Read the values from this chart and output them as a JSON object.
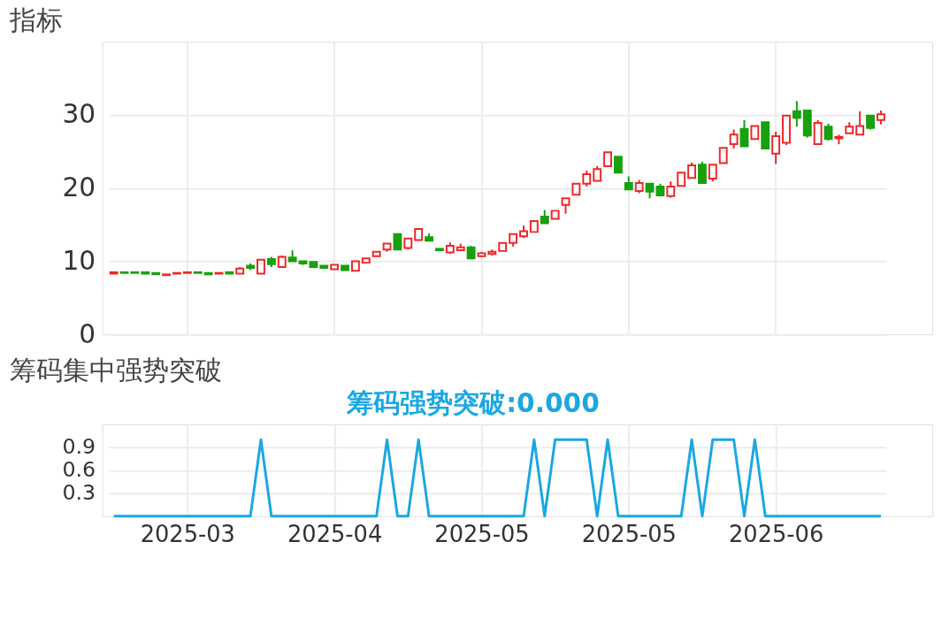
{
  "chart_data": [
    {
      "type": "candlestick",
      "title": "指标",
      "categories": [
        null,
        null,
        null,
        null,
        null,
        null,
        null,
        "2025-03",
        null,
        null,
        null,
        null,
        null,
        null,
        null,
        null,
        null,
        null,
        null,
        null,
        null,
        "2025-04",
        null,
        null,
        null,
        null,
        null,
        null,
        null,
        null,
        null,
        null,
        null,
        null,
        null,
        "2025-05",
        null,
        null,
        null,
        null,
        null,
        null,
        null,
        null,
        null,
        null,
        null,
        null,
        null,
        "2025-05",
        null,
        null,
        null,
        null,
        null,
        null,
        null,
        null,
        null,
        null,
        null,
        null,
        null,
        "2025-06",
        null,
        null,
        null,
        null,
        null,
        null,
        null,
        null,
        null,
        null
      ],
      "ohlc": [
        [
          8.3,
          8.5,
          8.3,
          8.5
        ],
        [
          8.5,
          8.5,
          8.4,
          8.4
        ],
        [
          8.5,
          8.5,
          8.4,
          8.4
        ],
        [
          8.5,
          8.5,
          8.3,
          8.3
        ],
        [
          8.4,
          8.4,
          8.2,
          8.2
        ],
        [
          8.1,
          8.2,
          8.1,
          8.2
        ],
        [
          8.3,
          8.4,
          8.3,
          8.4
        ],
        [
          8.4,
          8.5,
          8.4,
          8.5
        ],
        [
          8.5,
          8.5,
          8.4,
          8.4
        ],
        [
          8.4,
          8.4,
          8.2,
          8.2
        ],
        [
          8.3,
          8.4,
          8.3,
          8.4
        ],
        [
          8.5,
          8.5,
          8.3,
          8.3
        ],
        [
          8.3,
          9.2,
          8.3,
          9.0
        ],
        [
          9.4,
          9.7,
          8.8,
          9.1
        ],
        [
          8.3,
          10.2,
          8.3,
          10.2
        ],
        [
          10.3,
          10.6,
          9.2,
          9.6
        ],
        [
          9.2,
          10.8,
          9.2,
          10.6
        ],
        [
          10.5,
          11.5,
          10.0,
          10.0
        ],
        [
          10.0,
          10.0,
          9.5,
          9.7
        ],
        [
          9.9,
          9.9,
          9.2,
          9.2
        ],
        [
          9.4,
          9.4,
          9.1,
          9.1
        ],
        [
          8.9,
          9.5,
          8.9,
          9.5
        ],
        [
          9.4,
          9.4,
          8.8,
          8.8
        ],
        [
          8.7,
          10.0,
          8.7,
          10.0
        ],
        [
          9.8,
          10.4,
          9.8,
          10.4
        ],
        [
          10.7,
          11.3,
          10.7,
          11.3
        ],
        [
          11.6,
          12.4,
          11.3,
          12.4
        ],
        [
          13.7,
          13.7,
          11.6,
          11.6
        ],
        [
          11.8,
          13.1,
          11.6,
          13.1
        ],
        [
          12.9,
          14.4,
          12.9,
          14.4
        ],
        [
          13.3,
          13.8,
          12.8,
          12.8
        ],
        [
          11.7,
          11.7,
          11.5,
          11.5
        ],
        [
          11.2,
          12.6,
          11.0,
          12.1
        ],
        [
          11.5,
          12.4,
          11.4,
          11.9
        ],
        [
          11.9,
          12.1,
          10.4,
          10.4
        ],
        [
          10.7,
          11.3,
          10.6,
          11.1
        ],
        [
          11.0,
          11.6,
          10.8,
          11.3
        ],
        [
          11.4,
          12.5,
          11.4,
          12.5
        ],
        [
          12.5,
          13.7,
          12.0,
          13.7
        ],
        [
          13.4,
          14.9,
          13.2,
          14.1
        ],
        [
          14.0,
          15.5,
          14.0,
          15.5
        ],
        [
          16.1,
          17.0,
          15.2,
          15.2
        ],
        [
          15.8,
          16.9,
          15.8,
          16.9
        ],
        [
          17.7,
          18.6,
          16.5,
          18.6
        ],
        [
          19.1,
          20.6,
          19.1,
          20.6
        ],
        [
          20.6,
          22.4,
          20.2,
          21.9
        ],
        [
          21.0,
          23.0,
          21.0,
          22.6
        ],
        [
          23.0,
          24.9,
          23.0,
          24.9
        ],
        [
          24.3,
          24.3,
          22.1,
          22.1
        ],
        [
          20.7,
          21.6,
          19.8,
          19.8
        ],
        [
          19.6,
          21.1,
          19.3,
          20.7
        ],
        [
          20.6,
          20.6,
          18.6,
          19.5
        ],
        [
          20.2,
          20.6,
          19.0,
          19.0
        ],
        [
          18.9,
          20.9,
          18.7,
          20.2
        ],
        [
          20.3,
          22.1,
          20.3,
          22.1
        ],
        [
          21.4,
          23.5,
          21.4,
          23.1
        ],
        [
          23.2,
          23.6,
          20.7,
          20.7
        ],
        [
          21.3,
          23.2,
          20.9,
          23.2
        ],
        [
          23.4,
          25.5,
          23.4,
          25.5
        ],
        [
          26.0,
          28.0,
          25.4,
          27.3
        ],
        [
          28.1,
          29.3,
          25.7,
          25.7
        ],
        [
          26.7,
          28.5,
          26.7,
          28.5
        ],
        [
          29.0,
          29.0,
          25.4,
          25.4
        ],
        [
          24.7,
          27.7,
          23.3,
          27.1
        ],
        [
          26.2,
          29.9,
          25.9,
          29.9
        ],
        [
          30.5,
          31.9,
          28.4,
          29.6
        ],
        [
          30.6,
          30.6,
          26.9,
          27.2
        ],
        [
          26.0,
          29.3,
          26.0,
          28.9
        ],
        [
          28.4,
          28.8,
          26.5,
          26.7
        ],
        [
          26.8,
          27.3,
          26.0,
          27.0
        ],
        [
          27.5,
          29.0,
          27.5,
          28.4
        ],
        [
          27.3,
          30.5,
          27.3,
          28.5
        ],
        [
          29.9,
          29.9,
          28.0,
          28.2
        ],
        [
          29.3,
          30.6,
          28.7,
          30.1
        ]
      ],
      "colors": [
        "#f0262a",
        "#17a00f",
        "#17a00f",
        "#17a00f",
        "#17a00f",
        "#f0262a",
        "#f0262a",
        "#f0262a",
        "#17a00f",
        "#17a00f",
        "#f0262a",
        "#17a00f",
        "#f0262a",
        "#17a00f",
        "#f0262a",
        "#17a00f",
        "#f0262a",
        "#17a00f",
        "#17a00f",
        "#17a00f",
        "#17a00f",
        "#f0262a",
        "#17a00f",
        "#f0262a",
        "#f0262a",
        "#f0262a",
        "#f0262a",
        "#17a00f",
        "#f0262a",
        "#f0262a",
        "#17a00f",
        "#17a00f",
        "#f0262a",
        "#f0262a",
        "#17a00f",
        "#f0262a",
        "#f0262a",
        "#f0262a",
        "#f0262a",
        "#f0262a",
        "#f0262a",
        "#17a00f",
        "#f0262a",
        "#f0262a",
        "#f0262a",
        "#f0262a",
        "#f0262a",
        "#f0262a",
        "#17a00f",
        "#17a00f",
        "#f0262a",
        "#17a00f",
        "#17a00f",
        "#f0262a",
        "#f0262a",
        "#f0262a",
        "#17a00f",
        "#f0262a",
        "#f0262a",
        "#f0262a",
        "#17a00f",
        "#f0262a",
        "#17a00f",
        "#f0262a",
        "#f0262a",
        "#17a00f",
        "#17a00f",
        "#f0262a",
        "#17a00f",
        "#f0262a",
        "#f0262a",
        "#f0262a",
        "#17a00f",
        "#f0262a"
      ],
      "ylim": [
        0,
        40
      ],
      "yticks": [
        0,
        10,
        20,
        30
      ],
      "grid": true,
      "tick_labels": "y"
    },
    {
      "type": "line",
      "title": "筹码集中强势突破",
      "annotations": [
        "筹码强势突破:0.000"
      ],
      "categories": [
        null,
        null,
        null,
        null,
        null,
        null,
        null,
        "2025-03",
        null,
        null,
        null,
        null,
        null,
        null,
        null,
        null,
        null,
        null,
        null,
        null,
        null,
        "2025-04",
        null,
        null,
        null,
        null,
        null,
        null,
        null,
        null,
        null,
        null,
        null,
        null,
        null,
        "2025-05",
        null,
        null,
        null,
        null,
        null,
        null,
        null,
        null,
        null,
        null,
        null,
        null,
        null,
        "2025-05",
        null,
        null,
        null,
        null,
        null,
        null,
        null,
        null,
        null,
        null,
        null,
        null,
        null,
        "2025-06",
        null,
        null,
        null,
        null,
        null,
        null,
        null,
        null,
        null,
        null
      ],
      "series": [
        {
          "color": "#1aa7e2",
          "values": [
            0,
            0,
            0,
            0,
            0,
            0,
            0,
            0,
            0,
            0,
            0,
            0,
            0,
            0,
            1,
            0,
            0,
            0,
            0,
            0,
            0,
            0,
            0,
            0,
            0,
            0,
            1,
            0,
            0,
            1,
            0,
            0,
            0,
            0,
            0,
            0,
            0,
            0,
            0,
            0,
            1,
            0,
            1,
            1,
            1,
            1,
            0,
            1,
            0,
            0,
            0,
            0,
            0,
            0,
            0,
            1,
            0,
            1,
            1,
            1,
            0,
            1,
            0,
            0,
            0,
            0,
            0,
            0,
            0,
            0,
            0,
            0,
            0,
            0
          ]
        }
      ],
      "ylim": [
        0,
        1.2
      ],
      "yticks": [
        0.3,
        0.6,
        0.9
      ],
      "grid": true,
      "line_style": "solid"
    }
  ]
}
